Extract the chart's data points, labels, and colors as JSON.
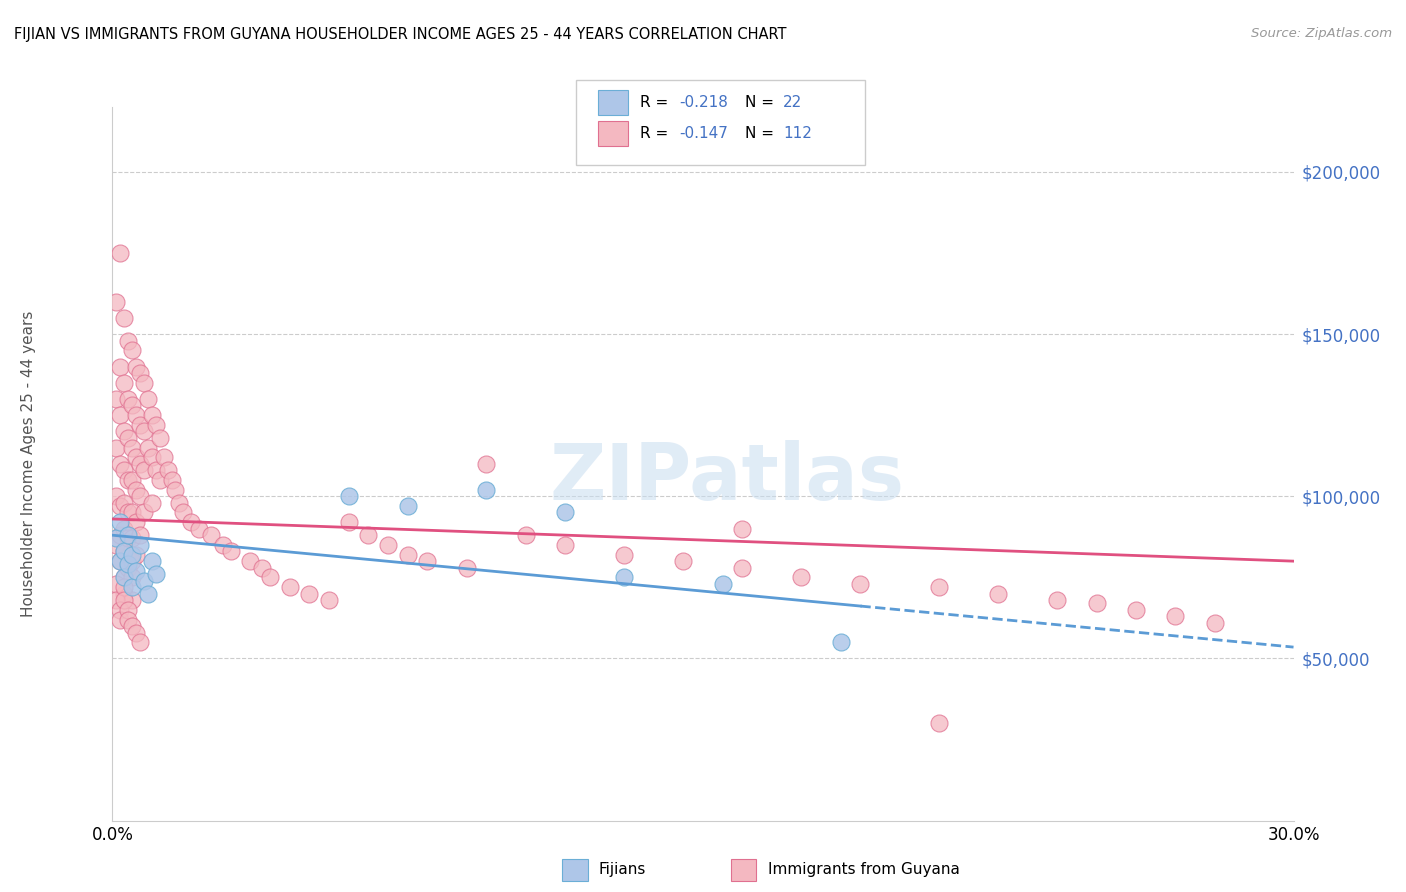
{
  "title": "FIJIAN VS IMMIGRANTS FROM GUYANA HOUSEHOLDER INCOME AGES 25 - 44 YEARS CORRELATION CHART",
  "source_text": "Source: ZipAtlas.com",
  "ylabel": "Householder Income Ages 25 - 44 years",
  "watermark": "ZIPatlas",
  "xlim": [
    0.0,
    0.3
  ],
  "ylim": [
    0,
    220000
  ],
  "yticks": [
    50000,
    100000,
    150000,
    200000
  ],
  "ytick_labels": [
    "$50,000",
    "$100,000",
    "$150,000",
    "$200,000"
  ],
  "fijian_color": "#aec6e8",
  "fijian_edge": "#6baed6",
  "guyana_color": "#f4b8c1",
  "guyana_edge": "#e07090",
  "trend_fijian_color": "#5b9bd5",
  "trend_guyana_color": "#e05080",
  "legend_label_fijian": "Fijians",
  "legend_label_guyana": "Immigrants from Guyana",
  "fijian_x": [
    0.001,
    0.002,
    0.002,
    0.003,
    0.003,
    0.004,
    0.004,
    0.005,
    0.005,
    0.006,
    0.007,
    0.008,
    0.009,
    0.01,
    0.011,
    0.06,
    0.075,
    0.095,
    0.115,
    0.13,
    0.155,
    0.185
  ],
  "fijian_y": [
    87000,
    80000,
    92000,
    75000,
    83000,
    79000,
    88000,
    72000,
    82000,
    77000,
    85000,
    74000,
    70000,
    80000,
    76000,
    100000,
    97000,
    102000,
    95000,
    75000,
    73000,
    55000
  ],
  "guyana_x": [
    0.001,
    0.001,
    0.001,
    0.001,
    0.001,
    0.002,
    0.002,
    0.002,
    0.002,
    0.002,
    0.002,
    0.002,
    0.003,
    0.003,
    0.003,
    0.003,
    0.003,
    0.003,
    0.003,
    0.003,
    0.003,
    0.004,
    0.004,
    0.004,
    0.004,
    0.004,
    0.004,
    0.004,
    0.005,
    0.005,
    0.005,
    0.005,
    0.005,
    0.005,
    0.005,
    0.005,
    0.005,
    0.006,
    0.006,
    0.006,
    0.006,
    0.006,
    0.006,
    0.007,
    0.007,
    0.007,
    0.007,
    0.007,
    0.008,
    0.008,
    0.008,
    0.008,
    0.009,
    0.009,
    0.01,
    0.01,
    0.01,
    0.011,
    0.011,
    0.012,
    0.012,
    0.013,
    0.014,
    0.015,
    0.016,
    0.017,
    0.018,
    0.02,
    0.022,
    0.025,
    0.028,
    0.03,
    0.035,
    0.038,
    0.04,
    0.045,
    0.05,
    0.055,
    0.06,
    0.065,
    0.07,
    0.075,
    0.08,
    0.09,
    0.095,
    0.105,
    0.115,
    0.13,
    0.145,
    0.16,
    0.175,
    0.19,
    0.21,
    0.225,
    0.24,
    0.25,
    0.26,
    0.27,
    0.28,
    0.16,
    0.001,
    0.001,
    0.002,
    0.002,
    0.003,
    0.003,
    0.004,
    0.004,
    0.005,
    0.006,
    0.007,
    0.21
  ],
  "guyana_y": [
    160000,
    130000,
    115000,
    100000,
    85000,
    175000,
    140000,
    125000,
    110000,
    97000,
    88000,
    80000,
    155000,
    135000,
    120000,
    108000,
    98000,
    90000,
    83000,
    75000,
    70000,
    148000,
    130000,
    118000,
    105000,
    95000,
    87000,
    78000,
    145000,
    128000,
    115000,
    105000,
    95000,
    87000,
    80000,
    75000,
    68000,
    140000,
    125000,
    112000,
    102000,
    92000,
    82000,
    138000,
    122000,
    110000,
    100000,
    88000,
    135000,
    120000,
    108000,
    95000,
    130000,
    115000,
    125000,
    112000,
    98000,
    122000,
    108000,
    118000,
    105000,
    112000,
    108000,
    105000,
    102000,
    98000,
    95000,
    92000,
    90000,
    88000,
    85000,
    83000,
    80000,
    78000,
    75000,
    72000,
    70000,
    68000,
    92000,
    88000,
    85000,
    82000,
    80000,
    78000,
    110000,
    88000,
    85000,
    82000,
    80000,
    78000,
    75000,
    73000,
    72000,
    70000,
    68000,
    67000,
    65000,
    63000,
    61000,
    90000,
    73000,
    68000,
    65000,
    62000,
    72000,
    68000,
    65000,
    62000,
    60000,
    58000,
    55000,
    30000
  ]
}
